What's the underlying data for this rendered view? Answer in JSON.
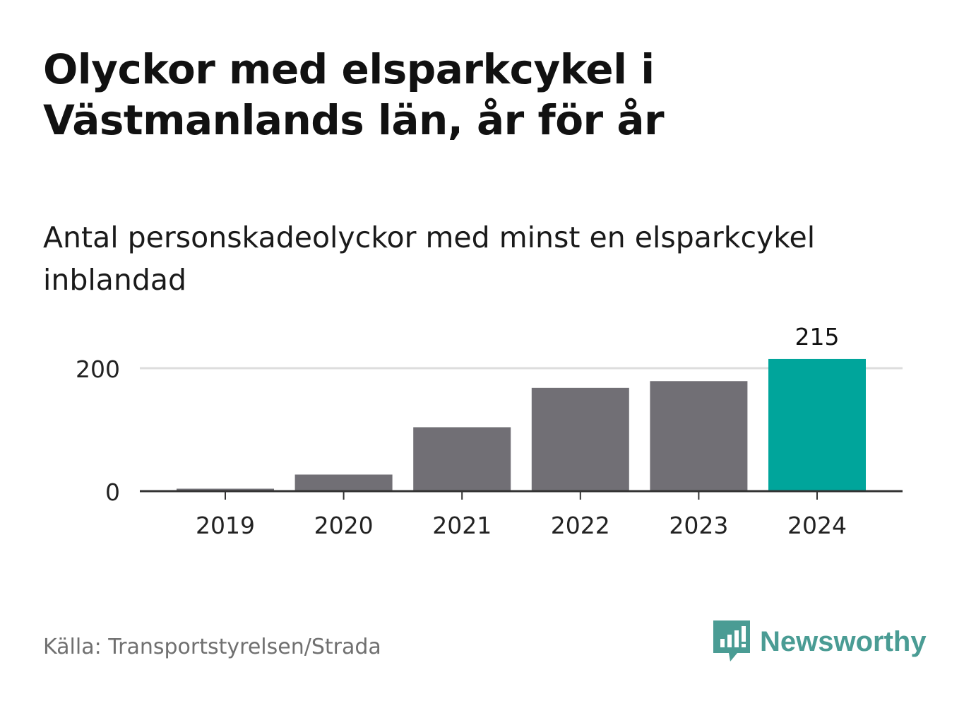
{
  "title": {
    "line1": "Olyckor med elsparkcykel i",
    "line2": "Västmanlands län, år för år"
  },
  "subtitle": {
    "line1": "Antal personskadeolyckor med minst en elsparkcykel",
    "line2": "inblandad"
  },
  "chart_data": {
    "type": "bar",
    "categories": [
      "2019",
      "2020",
      "2021",
      "2022",
      "2023",
      "2024"
    ],
    "values": [
      4,
      27,
      104,
      168,
      179,
      215
    ],
    "ylim": [
      0,
      230
    ],
    "yticks": [
      0,
      200
    ],
    "grid": true,
    "highlight": {
      "index": 5,
      "label": "215"
    },
    "colors": {
      "bar": "#716f75",
      "highlight": "#00a59b",
      "grid": "#dddddd",
      "axis": "#333333"
    }
  },
  "footer": {
    "source": "Källa: Transportstyrelsen/Strada",
    "brand": "Newsworthy",
    "logo_icon": "newsworthy-bar-chart-icon"
  }
}
